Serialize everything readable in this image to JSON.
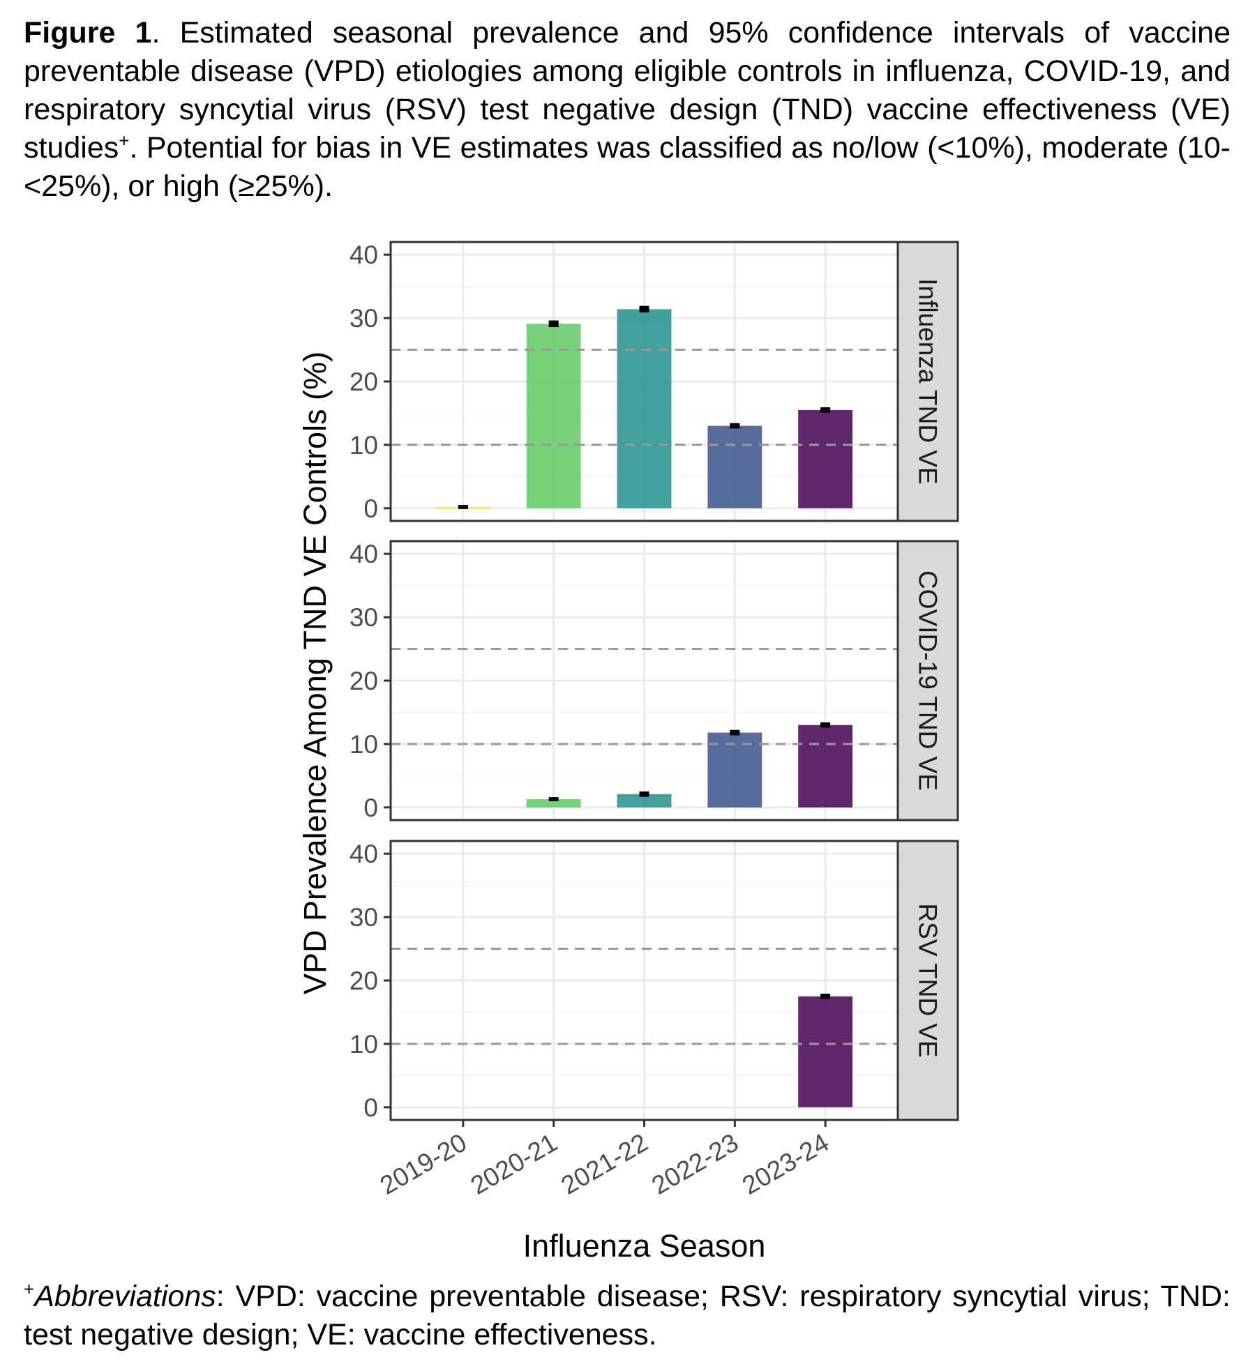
{
  "caption": {
    "label": "Figure 1",
    "text": ". Estimated seasonal prevalence and 95% confidence intervals of vaccine preventable disease (VPD) etiologies among eligible controls in influenza, COVID-19, and respiratory syncytial virus (RSV) test negative design (TND) vaccine effectiveness (VE) studies",
    "superscript": "+",
    "text2": ". Potential for bias in VE estimates was classified as no/low (<10%), moderate (10-<25%), or high (≥25%)."
  },
  "footnote": {
    "superscript": "+",
    "label": "Abbreviations",
    "text": ": VPD: vaccine preventable disease; RSV: respiratory syncytial virus; TND: test negative design; VE: vaccine effectiveness."
  },
  "colors": {
    "2019-20": "#fde725",
    "2020-21": "#5ec962",
    "2021-22": "#21918c",
    "2022-23": "#3b528b",
    "2023-24": "#440154",
    "strip_fill": "#d9d9d9",
    "grid": "#ebebeb",
    "ref_line": "#999999"
  },
  "chart_data": {
    "type": "bar",
    "xlabel": "Influenza Season",
    "ylabel": "VPD Prevalence Among TND VE Controls (%)",
    "categories": [
      "2019-20",
      "2020-21",
      "2021-22",
      "2022-23",
      "2023-24"
    ],
    "ylim": [
      0,
      40
    ],
    "yticks": [
      0,
      10,
      20,
      30,
      40
    ],
    "reference_lines": [
      10,
      25
    ],
    "grid": true,
    "bar_opacity": 0.85,
    "panels": [
      {
        "name": "Influenza TND VE",
        "values": [
          0.2,
          29.1,
          31.4,
          13.0,
          15.5
        ],
        "ci_low": [
          0.1,
          28.8,
          31.1,
          12.8,
          15.3
        ],
        "ci_high": [
          0.3,
          29.4,
          31.7,
          13.2,
          15.7
        ]
      },
      {
        "name": "COVID-19 TND VE",
        "values": [
          null,
          1.3,
          2.1,
          11.8,
          13.0
        ],
        "ci_low": [
          null,
          1.2,
          1.9,
          11.6,
          12.8
        ],
        "ci_high": [
          null,
          1.4,
          2.3,
          12.0,
          13.2
        ]
      },
      {
        "name": "RSV TND VE",
        "values": [
          null,
          null,
          null,
          null,
          17.5
        ],
        "ci_low": [
          null,
          null,
          null,
          null,
          17.3
        ],
        "ci_high": [
          null,
          null,
          null,
          null,
          17.7
        ]
      }
    ]
  }
}
